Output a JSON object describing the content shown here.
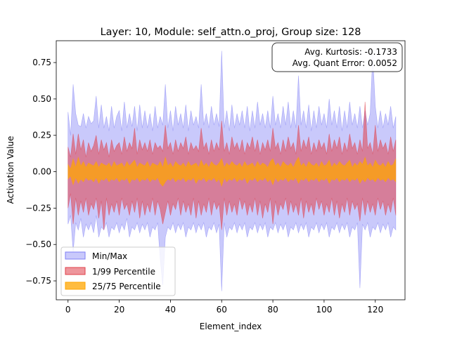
{
  "chart_data": {
    "type": "area",
    "title": "Layer: 10, Module: self_attn.o_proj,  Group size: 128",
    "xlabel": "Element_index",
    "ylabel": "Activation Value",
    "xlim": [
      -4.6,
      131.6
    ],
    "ylim": [
      -0.88,
      0.9
    ],
    "xticks": [
      0,
      20,
      40,
      60,
      80,
      100,
      120
    ],
    "yticks": [
      -0.75,
      -0.5,
      -0.25,
      0.0,
      0.25,
      0.5,
      0.75
    ],
    "ytick_labels": [
      "−0.75",
      "−0.50",
      "−0.25",
      "0.00",
      "0.25",
      "0.50",
      "0.75"
    ],
    "grid": false,
    "legend_position": "lower-left",
    "annotation_lines": [
      "Avg. Kurtosis: -0.1733",
      "Avg. Quant Error: 0.0052"
    ],
    "colors": {
      "minmax": "#7f7ff5",
      "p1_99": "#e0404a",
      "p25_75": "#ffa500"
    },
    "series": [
      {
        "name": "Min/Max",
        "upper": [
          0.41,
          0.25,
          0.6,
          0.4,
          0.32,
          0.31,
          0.4,
          0.3,
          0.38,
          0.33,
          0.35,
          0.52,
          0.3,
          0.46,
          0.3,
          0.38,
          0.28,
          0.45,
          0.3,
          0.38,
          0.42,
          0.28,
          0.48,
          0.3,
          0.4,
          0.31,
          0.45,
          0.28,
          0.46,
          0.3,
          0.42,
          0.3,
          0.4,
          0.28,
          0.45,
          0.3,
          0.38,
          0.32,
          0.6,
          0.3,
          0.42,
          0.28,
          0.45,
          0.32,
          0.4,
          0.3,
          0.46,
          0.28,
          0.42,
          0.32,
          0.38,
          0.3,
          0.6,
          0.32,
          0.4,
          0.3,
          0.45,
          0.32,
          0.4,
          0.31,
          0.83,
          0.3,
          0.42,
          0.28,
          0.46,
          0.3,
          0.4,
          0.32,
          0.42,
          0.3,
          0.45,
          0.28,
          0.42,
          0.3,
          0.48,
          0.32,
          0.4,
          0.3,
          0.42,
          0.3,
          0.52,
          0.32,
          0.4,
          0.3,
          0.45,
          0.32,
          0.48,
          0.3,
          0.42,
          0.3,
          0.66,
          0.32,
          0.42,
          0.3,
          0.46,
          0.28,
          0.42,
          0.3,
          0.45,
          0.32,
          0.4,
          0.3,
          0.5,
          0.32,
          0.42,
          0.3,
          0.45,
          0.28,
          0.42,
          0.3,
          0.48,
          0.32,
          0.4,
          0.3,
          0.45,
          0.3,
          0.42,
          0.32,
          0.4,
          0.8,
          0.45,
          0.3,
          0.42,
          0.3,
          0.4,
          0.32,
          0.45,
          0.3,
          0.38
        ],
        "lower": [
          -0.36,
          -0.3,
          -0.55,
          -0.35,
          -0.4,
          -0.32,
          -0.45,
          -0.36,
          -0.4,
          -0.35,
          -0.42,
          -0.3,
          -0.45,
          -0.38,
          -0.4,
          -0.35,
          -0.45,
          -0.38,
          -0.4,
          -0.35,
          -0.42,
          -0.36,
          -0.4,
          -0.32,
          -0.45,
          -0.38,
          -0.4,
          -0.35,
          -0.42,
          -0.36,
          -0.4,
          -0.35,
          -0.45,
          -0.38,
          -0.4,
          -0.35,
          -0.6,
          -0.78,
          -0.45,
          -0.38,
          -0.4,
          -0.35,
          -0.42,
          -0.36,
          -0.4,
          -0.35,
          -0.45,
          -0.38,
          -0.4,
          -0.35,
          -0.42,
          -0.36,
          -0.4,
          -0.35,
          -0.45,
          -0.38,
          -0.4,
          -0.35,
          -0.42,
          -0.36,
          -0.82,
          -0.35,
          -0.45,
          -0.38,
          -0.4,
          -0.35,
          -0.42,
          -0.36,
          -0.4,
          -0.35,
          -0.45,
          -0.38,
          -0.4,
          -0.35,
          -0.42,
          -0.36,
          -0.4,
          -0.35,
          -0.45,
          -0.38,
          -0.4,
          -0.35,
          -0.42,
          -0.36,
          -0.4,
          -0.35,
          -0.45,
          -0.38,
          -0.4,
          -0.35,
          -0.42,
          -0.36,
          -0.4,
          -0.35,
          -0.45,
          -0.38,
          -0.4,
          -0.35,
          -0.42,
          -0.36,
          -0.4,
          -0.35,
          -0.45,
          -0.38,
          -0.4,
          -0.35,
          -0.42,
          -0.36,
          -0.4,
          -0.35,
          -0.45,
          -0.38,
          -0.4,
          -0.35,
          -0.8,
          -0.36,
          -0.4,
          -0.35,
          -0.45,
          -0.38,
          -0.4,
          -0.35,
          -0.42,
          -0.36,
          -0.4,
          -0.35,
          -0.45,
          -0.38,
          -0.4
        ]
      },
      {
        "name": "1/99 Percentile",
        "upper": [
          0.17,
          0.1,
          0.26,
          0.12,
          0.26,
          0.15,
          0.22,
          0.1,
          0.2,
          0.14,
          0.18,
          0.25,
          0.12,
          0.22,
          0.15,
          0.2,
          0.1,
          0.22,
          0.14,
          0.18,
          0.2,
          0.12,
          0.24,
          0.14,
          0.2,
          0.16,
          0.3,
          0.12,
          0.22,
          0.15,
          0.2,
          0.14,
          0.22,
          0.12,
          0.2,
          0.16,
          0.18,
          0.14,
          0.32,
          0.16,
          0.2,
          0.12,
          0.22,
          0.14,
          0.2,
          0.16,
          0.24,
          0.12,
          0.2,
          0.15,
          0.18,
          0.14,
          0.3,
          0.16,
          0.2,
          0.12,
          0.22,
          0.14,
          0.2,
          0.15,
          0.35,
          0.14,
          0.2,
          0.12,
          0.24,
          0.16,
          0.2,
          0.14,
          0.22,
          0.12,
          0.2,
          0.16,
          0.24,
          0.14,
          0.22,
          0.12,
          0.2,
          0.15,
          0.22,
          0.14,
          0.3,
          0.16,
          0.2,
          0.12,
          0.22,
          0.14,
          0.24,
          0.16,
          0.2,
          0.12,
          0.32,
          0.14,
          0.22,
          0.16,
          0.24,
          0.12,
          0.2,
          0.14,
          0.22,
          0.16,
          0.2,
          0.12,
          0.26,
          0.14,
          0.22,
          0.16,
          0.24,
          0.12,
          0.2,
          0.14,
          0.26,
          0.16,
          0.2,
          0.12,
          0.22,
          0.14,
          0.48,
          0.16,
          0.2,
          0.12,
          0.32,
          0.14,
          0.22,
          0.16,
          0.2,
          0.12,
          0.24,
          0.14,
          0.22
        ],
        "lower": [
          -0.25,
          -0.15,
          -0.36,
          -0.18,
          -0.3,
          -0.2,
          -0.28,
          -0.18,
          -0.3,
          -0.22,
          -0.26,
          -0.18,
          -0.32,
          -0.2,
          -0.4,
          -0.18,
          -0.3,
          -0.22,
          -0.28,
          -0.2,
          -0.3,
          -0.18,
          -0.26,
          -0.22,
          -0.3,
          -0.2,
          -0.28,
          -0.18,
          -0.32,
          -0.2,
          -0.3,
          -0.22,
          -0.28,
          -0.18,
          -0.3,
          -0.2,
          -0.26,
          -0.36,
          -0.28,
          -0.2,
          -0.3,
          -0.22,
          -0.26,
          -0.18,
          -0.3,
          -0.2,
          -0.28,
          -0.22,
          -0.3,
          -0.18,
          -0.32,
          -0.2,
          -0.3,
          -0.22,
          -0.28,
          -0.18,
          -0.3,
          -0.2,
          -0.26,
          -0.22,
          -0.4,
          -0.18,
          -0.3,
          -0.2,
          -0.28,
          -0.22,
          -0.3,
          -0.18,
          -0.26,
          -0.2,
          -0.3,
          -0.22,
          -0.28,
          -0.18,
          -0.3,
          -0.2,
          -0.32,
          -0.22,
          -0.28,
          -0.18,
          -0.36,
          -0.2,
          -0.3,
          -0.22,
          -0.26,
          -0.18,
          -0.3,
          -0.2,
          -0.28,
          -0.22,
          -0.3,
          -0.18,
          -0.32,
          -0.2,
          -0.28,
          -0.22,
          -0.3,
          -0.18,
          -0.26,
          -0.2,
          -0.3,
          -0.22,
          -0.28,
          -0.18,
          -0.3,
          -0.2,
          -0.32,
          -0.22,
          -0.28,
          -0.18,
          -0.3,
          -0.2,
          -0.26,
          -0.22,
          -0.34,
          -0.18,
          -0.3,
          -0.2,
          -0.28,
          -0.22,
          -0.3,
          -0.18,
          -0.26,
          -0.2,
          -0.3,
          -0.22,
          -0.28,
          -0.18,
          -0.3
        ]
      },
      {
        "name": "25/75 Percentile",
        "upper": [
          0.05,
          0.02,
          0.09,
          0.03,
          0.1,
          0.04,
          0.07,
          0.03,
          0.06,
          0.05,
          0.04,
          0.07,
          0.03,
          0.06,
          0.05,
          0.04,
          0.06,
          0.03,
          0.07,
          0.04,
          0.05,
          0.06,
          0.03,
          0.07,
          0.04,
          0.06,
          0.08,
          0.03,
          0.06,
          0.05,
          0.04,
          0.07,
          0.03,
          0.06,
          0.05,
          0.04,
          0.07,
          0.03,
          0.1,
          0.04,
          0.06,
          0.03,
          0.07,
          0.05,
          0.04,
          0.06,
          0.03,
          0.07,
          0.04,
          0.05,
          0.06,
          0.03,
          0.08,
          0.04,
          0.06,
          0.03,
          0.07,
          0.05,
          0.04,
          0.06,
          0.09,
          0.03,
          0.06,
          0.04,
          0.07,
          0.05,
          0.04,
          0.06,
          0.03,
          0.07,
          0.04,
          0.05,
          0.06,
          0.03,
          0.07,
          0.04,
          0.06,
          0.05,
          0.03,
          0.07,
          0.09,
          0.04,
          0.06,
          0.03,
          0.07,
          0.05,
          0.04,
          0.06,
          0.03,
          0.07,
          0.1,
          0.04,
          0.06,
          0.03,
          0.07,
          0.05,
          0.04,
          0.06,
          0.03,
          0.07,
          0.04,
          0.05,
          0.08,
          0.03,
          0.06,
          0.04,
          0.07,
          0.05,
          0.04,
          0.06,
          0.08,
          0.03,
          0.06,
          0.04,
          0.07,
          0.05,
          0.1,
          0.04,
          0.06,
          0.03,
          0.08,
          0.05,
          0.04,
          0.06,
          0.03,
          0.07,
          0.04,
          0.05,
          0.09
        ],
        "lower": [
          -0.05,
          -0.03,
          -0.09,
          -0.04,
          -0.08,
          -0.05,
          -0.07,
          -0.04,
          -0.06,
          -0.05,
          -0.07,
          -0.04,
          -0.08,
          -0.05,
          -0.06,
          -0.04,
          -0.07,
          -0.05,
          -0.06,
          -0.04,
          -0.07,
          -0.05,
          -0.06,
          -0.04,
          -0.08,
          -0.05,
          -0.06,
          -0.04,
          -0.07,
          -0.05,
          -0.06,
          -0.04,
          -0.07,
          -0.05,
          -0.06,
          -0.04,
          -0.08,
          -0.1,
          -0.07,
          -0.05,
          -0.06,
          -0.04,
          -0.07,
          -0.05,
          -0.06,
          -0.04,
          -0.07,
          -0.05,
          -0.06,
          -0.04,
          -0.08,
          -0.05,
          -0.06,
          -0.04,
          -0.07,
          -0.05,
          -0.06,
          -0.04,
          -0.07,
          -0.05,
          -0.1,
          -0.04,
          -0.07,
          -0.05,
          -0.06,
          -0.04,
          -0.07,
          -0.05,
          -0.06,
          -0.04,
          -0.08,
          -0.05,
          -0.06,
          -0.04,
          -0.07,
          -0.05,
          -0.06,
          -0.04,
          -0.07,
          -0.05,
          -0.09,
          -0.04,
          -0.07,
          -0.05,
          -0.06,
          -0.04,
          -0.07,
          -0.05,
          -0.06,
          -0.04,
          -0.08,
          -0.05,
          -0.06,
          -0.04,
          -0.07,
          -0.05,
          -0.06,
          -0.04,
          -0.07,
          -0.05,
          -0.06,
          -0.04,
          -0.08,
          -0.05,
          -0.06,
          -0.04,
          -0.07,
          -0.05,
          -0.06,
          -0.04,
          -0.07,
          -0.05,
          -0.06,
          -0.04,
          -0.08,
          -0.05,
          -0.07,
          -0.04,
          -0.06,
          -0.05,
          -0.07,
          -0.04,
          -0.06,
          -0.05,
          -0.07,
          -0.04,
          -0.06,
          -0.05,
          -0.07
        ]
      }
    ]
  }
}
